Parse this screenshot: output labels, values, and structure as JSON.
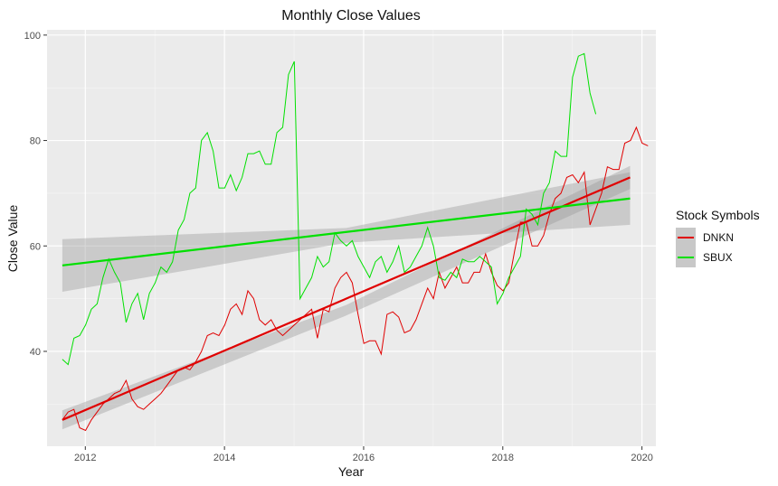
{
  "chart_data": {
    "type": "line",
    "title": "Monthly Close Values",
    "xlabel": "Year",
    "ylabel": "Close Value",
    "xlim": [
      2011.45,
      2020.2
    ],
    "ylim": [
      22,
      101
    ],
    "x_ticks": [
      {
        "value": 2012,
        "label": "2012"
      },
      {
        "value": 2014,
        "label": "2014"
      },
      {
        "value": 2016,
        "label": "2016"
      },
      {
        "value": 2018,
        "label": "2018"
      },
      {
        "value": 2020,
        "label": "2020"
      }
    ],
    "y_ticks": [
      {
        "value": 40,
        "label": "40"
      },
      {
        "value": 60,
        "label": "60"
      },
      {
        "value": 80,
        "label": "80"
      },
      {
        "value": 100,
        "label": "100"
      }
    ],
    "grid": true,
    "legend": {
      "title": "Stock Symbols",
      "position": "right",
      "entries": [
        "DNKN",
        "SBUX"
      ]
    },
    "x_start": 2011.67,
    "x_step": 0.08333,
    "series": [
      {
        "name": "DNKN",
        "color": "#e00000",
        "values": [
          27,
          28.5,
          29,
          25.5,
          25,
          27,
          28.5,
          30,
          31,
          32,
          32.5,
          34.5,
          31,
          29.5,
          29,
          30,
          31,
          32,
          33.5,
          35,
          36.5,
          37,
          36.5,
          38,
          40,
          43,
          43.5,
          43,
          45,
          48,
          49,
          47,
          51.5,
          50,
          46,
          45,
          46,
          44,
          43,
          44,
          45,
          46,
          47,
          48,
          42.5,
          48,
          47.5,
          52,
          54,
          55,
          53,
          47,
          41.5,
          42,
          42,
          39.5,
          47,
          47.5,
          46.5,
          43.5,
          44,
          46,
          49,
          52,
          50,
          55,
          52,
          54,
          56,
          53,
          53,
          55,
          55,
          58.5,
          55,
          52.5,
          51.5,
          53,
          59,
          64.5,
          64.5,
          60,
          60,
          62,
          66,
          69,
          70,
          73,
          73.5,
          72,
          74,
          64,
          67,
          70,
          75,
          74.5,
          74.5,
          79.5,
          80,
          82.5,
          79.5,
          79
        ]
      },
      {
        "name": "SBUX",
        "color": "#00e000",
        "values": [
          38.5,
          37.5,
          42.5,
          43,
          45,
          48,
          49,
          54,
          57.5,
          55,
          53,
          45.5,
          49,
          51,
          46,
          51,
          53,
          56,
          55,
          57,
          63,
          65,
          70,
          71,
          80,
          81.5,
          78,
          71,
          71,
          73.5,
          70.5,
          73,
          77.5,
          77.5,
          78,
          75.5,
          75.5,
          81.5,
          82.5,
          92.5,
          95,
          50,
          52,
          54,
          58,
          56,
          57,
          62.5,
          61,
          60,
          61,
          58,
          56,
          54,
          57,
          58,
          55,
          57,
          60,
          55,
          56,
          58,
          60,
          63.5,
          60,
          54,
          53.5,
          55,
          54,
          57.5,
          57,
          57,
          58,
          57,
          56,
          49,
          51,
          54,
          56,
          58,
          67,
          66,
          64,
          70,
          72,
          78,
          77,
          77,
          92,
          96,
          96.5,
          89,
          85
        ]
      }
    ],
    "trend_lines": [
      {
        "name": "DNKN",
        "color": "#e00000",
        "x": [
          2011.67,
          2019.83
        ],
        "y": [
          27,
          73
        ],
        "se_start": [
          25.2,
          28.8
        ],
        "se_mid": [
          46.8,
          48.8
        ],
        "se_end": [
          70.8,
          75.2
        ]
      },
      {
        "name": "SBUX",
        "color": "#00e000",
        "x": [
          2011.67,
          2019.83
        ],
        "y": [
          56.3,
          69
        ],
        "se_start": [
          51.3,
          61.3
        ],
        "se_mid": [
          60.6,
          63.4
        ],
        "se_end": [
          64,
          74
        ]
      }
    ]
  }
}
